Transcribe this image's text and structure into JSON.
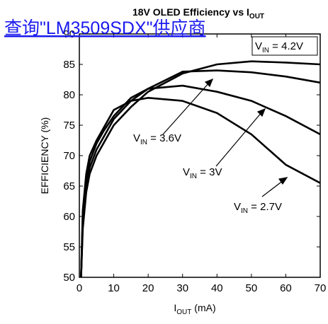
{
  "link": "查询\"LM3509SDX\"供应商",
  "chart_data": {
    "type": "line",
    "title": [
      "18V OLED Efficiency vs I",
      "OUT"
    ],
    "xlabel": [
      "I",
      "OUT",
      " (mA)"
    ],
    "ylabel": "EFFICIENCY (%)",
    "x": [
      0.5,
      1,
      2,
      3,
      5,
      7,
      10,
      15,
      20,
      30,
      40,
      50,
      60,
      70
    ],
    "series": [
      {
        "name": [
          "V",
          "IN",
          " = 4.2V"
        ],
        "color": "#000000",
        "values": [
          50,
          58,
          64,
          67,
          70,
          72,
          75,
          78,
          80.5,
          83.5,
          85,
          85.5,
          85.3,
          85
        ]
      },
      {
        "name": [
          "V",
          "IN",
          " = 3.6V"
        ],
        "color": "#000000",
        "values": [
          50,
          59,
          65,
          68,
          71,
          73,
          76,
          79,
          81,
          83.8,
          84,
          83.7,
          83,
          82
        ]
      },
      {
        "name": [
          "V",
          "IN",
          " = 3V"
        ],
        "color": "#000000",
        "values": [
          50,
          60,
          66,
          69,
          72,
          74,
          76.5,
          79.5,
          81,
          81.5,
          80.5,
          79,
          76.5,
          73.5
        ]
      },
      {
        "name": [
          "V",
          "IN",
          " = 2.7V"
        ],
        "color": "#000000",
        "values": [
          50,
          61,
          67,
          70,
          72.5,
          74.5,
          77.5,
          79,
          79.5,
          79,
          77,
          73.5,
          68.5,
          65.5
        ]
      }
    ],
    "xlim": [
      0,
      70
    ],
    "xticks": [
      0,
      10,
      20,
      30,
      40,
      50,
      60,
      70
    ],
    "ylim": [
      50,
      90
    ],
    "yticks": [
      50,
      55,
      60,
      65,
      70,
      75,
      80,
      85,
      90
    ],
    "grid": false
  }
}
